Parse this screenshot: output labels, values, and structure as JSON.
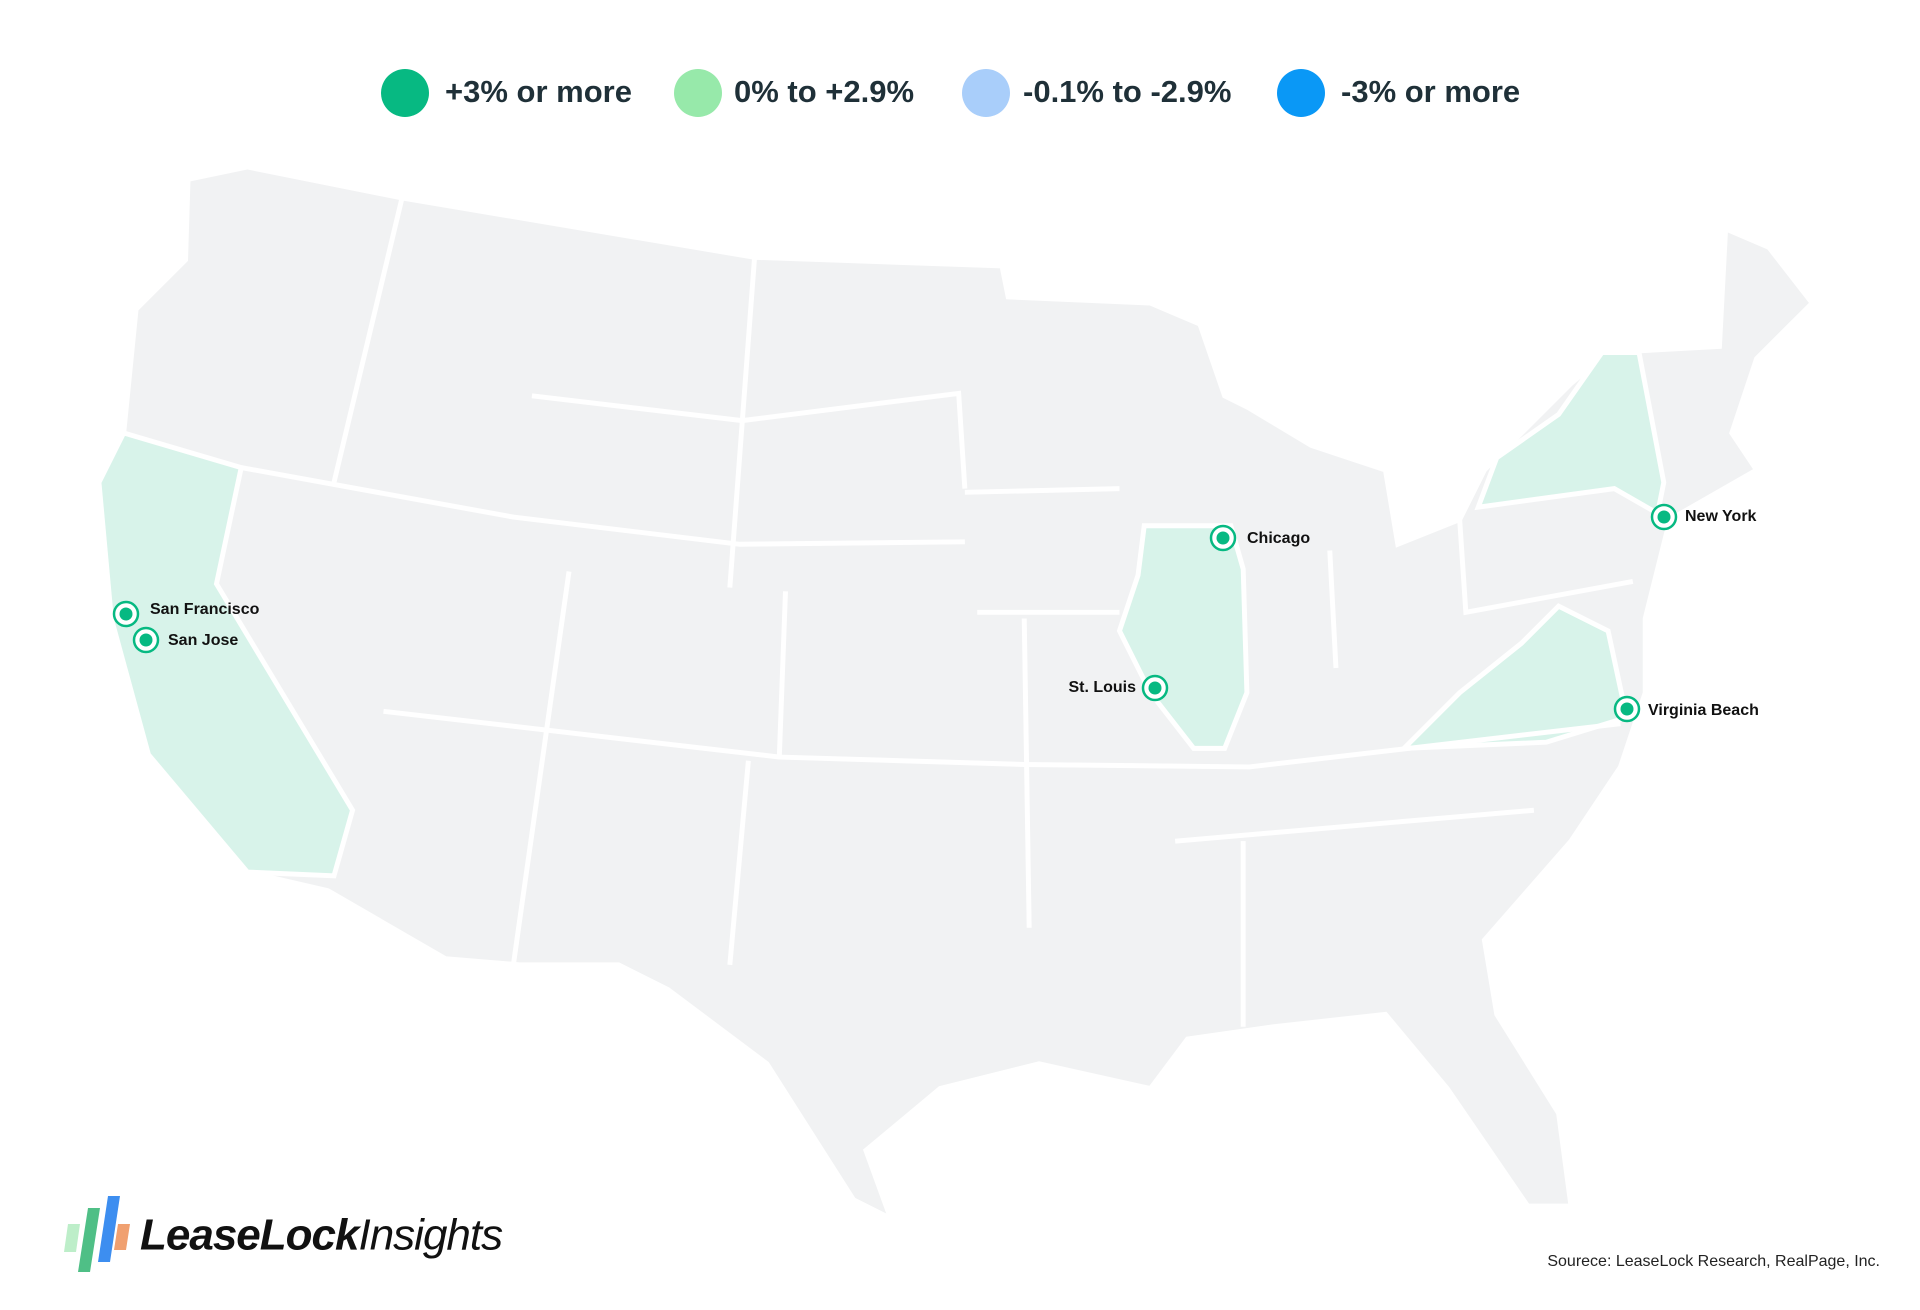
{
  "legend": [
    {
      "label": "+3% or more",
      "color": "#07b982"
    },
    {
      "label": "0% to +2.9%",
      "color": "#97e9aa"
    },
    {
      "label": "-0.1% to -2.9%",
      "color": "#a9cefa"
    },
    {
      "label": "-3% or more",
      "color": "#0a98f6"
    }
  ],
  "cities": [
    "San Francisco",
    "San Jose",
    "Chicago",
    "St. Louis",
    "New York",
    "Virginia Beach"
  ],
  "logo": {
    "brand": "LeaseLock",
    "product": "Insights"
  },
  "source": "Sourece: LeaseLock Research, RealPage, Inc."
}
